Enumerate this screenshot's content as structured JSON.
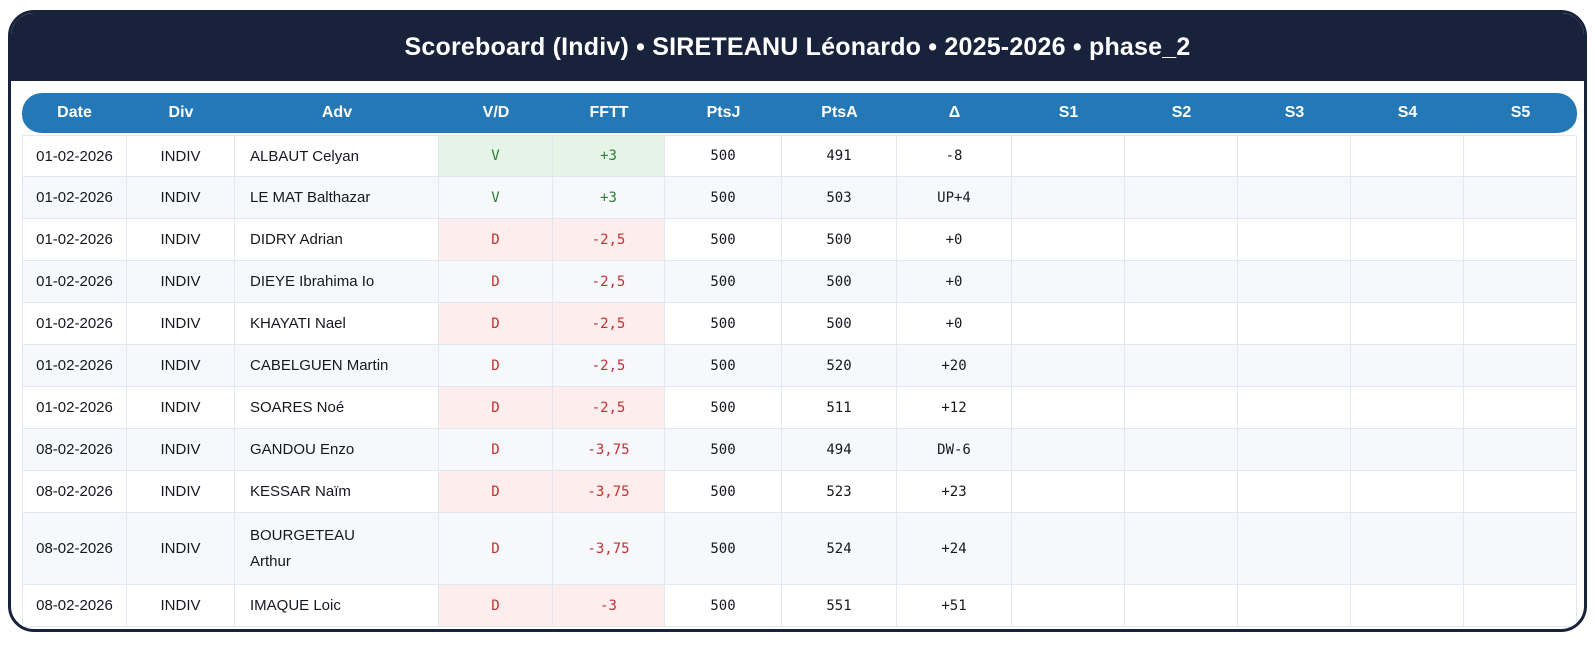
{
  "title": "Scoreboard (Indiv) • SIRETEANU Léonardo • 2025-2026 • phase_2",
  "colors": {
    "navy": "#18223A",
    "blue": "#2478B6",
    "green": "#2E7D32",
    "greenbg": "#E6F4E8",
    "red": "#C53030",
    "redbg": "#FDEDEC",
    "purple": "#C3AEE3",
    "pink": "#FBB8C7",
    "rowalt": "#F6F8FC",
    "grid": "#E2E8F1"
  },
  "table": {
    "columns": [
      "Date",
      "Div",
      "Adv",
      "V/D",
      "FFTT",
      "PtsJ",
      "PtsA",
      "Δ",
      "S1",
      "S2",
      "S3",
      "S4",
      "S5"
    ],
    "rows": [
      {
        "date": "01-02-2026",
        "div": "INDIV",
        "adv": "ALBAUT Celyan",
        "vd": "V",
        "fftt": "+3",
        "ptsj": "500",
        "ptsa": "491",
        "delta": "-8",
        "delta_highlight": "none",
        "s1": "",
        "s2": "",
        "s3": "",
        "s4": "",
        "s5": "",
        "wrap": false
      },
      {
        "date": "01-02-2026",
        "div": "INDIV",
        "adv": "LE MAT Balthazar",
        "vd": "V",
        "fftt": "+3",
        "ptsj": "500",
        "ptsa": "503",
        "delta": "UP+4",
        "delta_highlight": "up",
        "s1": "",
        "s2": "",
        "s3": "",
        "s4": "",
        "s5": "",
        "wrap": false
      },
      {
        "date": "01-02-2026",
        "div": "INDIV",
        "adv": "DIDRY Adrian",
        "vd": "D",
        "fftt": "-2,5",
        "ptsj": "500",
        "ptsa": "500",
        "delta": "+0",
        "delta_highlight": "none",
        "s1": "",
        "s2": "",
        "s3": "",
        "s4": "",
        "s5": "",
        "wrap": false
      },
      {
        "date": "01-02-2026",
        "div": "INDIV",
        "adv": "DIEYE Ibrahima Io",
        "vd": "D",
        "fftt": "-2,5",
        "ptsj": "500",
        "ptsa": "500",
        "delta": "+0",
        "delta_highlight": "none",
        "s1": "",
        "s2": "",
        "s3": "",
        "s4": "",
        "s5": "",
        "wrap": false
      },
      {
        "date": "01-02-2026",
        "div": "INDIV",
        "adv": "KHAYATI Nael",
        "vd": "D",
        "fftt": "-2,5",
        "ptsj": "500",
        "ptsa": "500",
        "delta": "+0",
        "delta_highlight": "none",
        "s1": "",
        "s2": "",
        "s3": "",
        "s4": "",
        "s5": "",
        "wrap": false
      },
      {
        "date": "01-02-2026",
        "div": "INDIV",
        "adv": "CABELGUEN Martin",
        "vd": "D",
        "fftt": "-2,5",
        "ptsj": "500",
        "ptsa": "520",
        "delta": "+20",
        "delta_highlight": "none",
        "s1": "",
        "s2": "",
        "s3": "",
        "s4": "",
        "s5": "",
        "wrap": false
      },
      {
        "date": "01-02-2026",
        "div": "INDIV",
        "adv": "SOARES Noé",
        "vd": "D",
        "fftt": "-2,5",
        "ptsj": "500",
        "ptsa": "511",
        "delta": "+12",
        "delta_highlight": "none",
        "s1": "",
        "s2": "",
        "s3": "",
        "s4": "",
        "s5": "",
        "wrap": false
      },
      {
        "date": "08-02-2026",
        "div": "INDIV",
        "adv": "GANDOU Enzo",
        "vd": "D",
        "fftt": "-3,75",
        "ptsj": "500",
        "ptsa": "494",
        "delta": "DW-6",
        "delta_highlight": "down",
        "s1": "",
        "s2": "",
        "s3": "",
        "s4": "",
        "s5": "",
        "wrap": false
      },
      {
        "date": "08-02-2026",
        "div": "INDIV",
        "adv": "KESSAR Naïm",
        "vd": "D",
        "fftt": "-3,75",
        "ptsj": "500",
        "ptsa": "523",
        "delta": "+23",
        "delta_highlight": "none",
        "s1": "",
        "s2": "",
        "s3": "",
        "s4": "",
        "s5": "",
        "wrap": false
      },
      {
        "date": "08-02-2026",
        "div": "INDIV",
        "adv": "BOURGETEAU Arthur",
        "vd": "D",
        "fftt": "-3,75",
        "ptsj": "500",
        "ptsa": "524",
        "delta": "+24",
        "delta_highlight": "none",
        "s1": "",
        "s2": "",
        "s3": "",
        "s4": "",
        "s5": "",
        "wrap": true
      },
      {
        "date": "08-02-2026",
        "div": "INDIV",
        "adv": "IMAQUE Loic",
        "vd": "D",
        "fftt": "-3",
        "ptsj": "500",
        "ptsa": "551",
        "delta": "+51",
        "delta_highlight": "none",
        "s1": "",
        "s2": "",
        "s3": "",
        "s4": "",
        "s5": "",
        "wrap": false
      }
    ]
  }
}
